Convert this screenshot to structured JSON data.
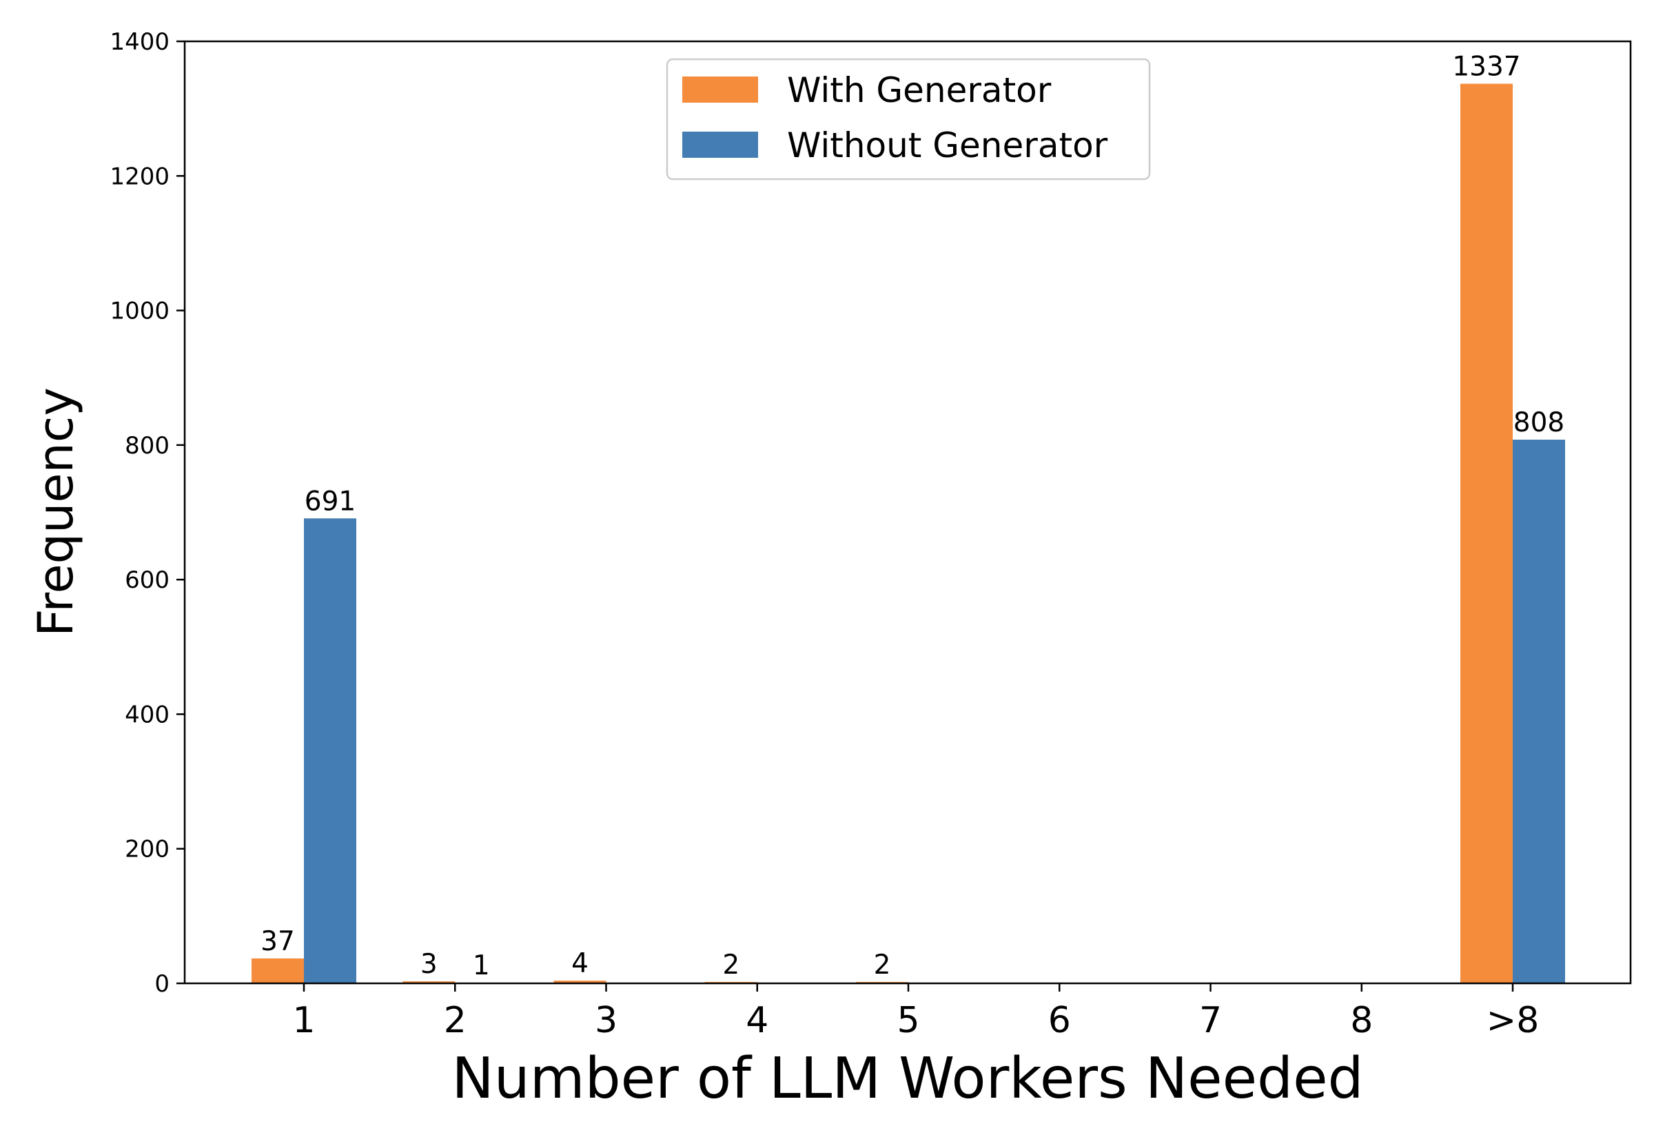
{
  "chart_data": {
    "type": "bar",
    "categories": [
      "1",
      "2",
      "3",
      "4",
      "5",
      "6",
      "7",
      "8",
      ">8"
    ],
    "series": [
      {
        "name": "With Generator",
        "color": "#f58c3c",
        "values": [
          37,
          3,
          4,
          2,
          2,
          0,
          0,
          0,
          1337
        ],
        "labels": [
          "37",
          "3",
          "4",
          "2",
          "2",
          "",
          "",
          "",
          "1337"
        ]
      },
      {
        "name": "Without Generator",
        "color": "#447db3",
        "values": [
          691,
          1,
          0,
          0,
          0,
          0,
          0,
          0,
          808
        ],
        "labels": [
          "691",
          "1",
          "",
          "",
          "",
          "",
          "",
          "",
          "808"
        ]
      }
    ],
    "xlabel": "Number of LLM Workers Needed",
    "ylabel": "Frequency",
    "ylim": [
      0,
      1400
    ],
    "yticks": [
      "0",
      "200",
      "400",
      "600",
      "800",
      "1000",
      "1200",
      "1400"
    ],
    "grid": false,
    "legend_position": "top-center"
  }
}
